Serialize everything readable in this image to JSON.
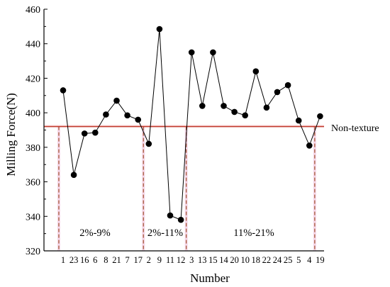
{
  "chart_data": {
    "type": "scatter",
    "xlabel": "Number",
    "ylabel": "Milling Force(N)",
    "ylim": [
      320,
      460
    ],
    "yticks": [
      320,
      340,
      360,
      380,
      400,
      420,
      440,
      460
    ],
    "categories": [
      "1",
      "23",
      "16",
      "6",
      "8",
      "21",
      "7",
      "17",
      "2",
      "9",
      "11",
      "12",
      "3",
      "13",
      "15",
      "14",
      "20",
      "10",
      "18",
      "22",
      "24",
      "25",
      "5",
      "4",
      "19"
    ],
    "values": [
      413,
      364,
      388,
      388.5,
      399,
      407,
      398.5,
      396,
      382,
      448.5,
      340.5,
      338,
      435,
      404,
      435,
      404,
      400.5,
      398.5,
      424,
      403,
      412,
      416,
      395.5,
      381,
      398
    ],
    "reference": {
      "label": "Non-texture",
      "value": 392
    },
    "groups": [
      {
        "label": "2%-9%",
        "start": 0,
        "end": 7
      },
      {
        "label": "2%-11%",
        "start": 8,
        "end": 11
      },
      {
        "label": "11%-21%",
        "start": 12,
        "end": 24
      }
    ],
    "dividers_after_index": [
      -0.4,
      7.5,
      11.5,
      23.5
    ],
    "grid": false
  }
}
